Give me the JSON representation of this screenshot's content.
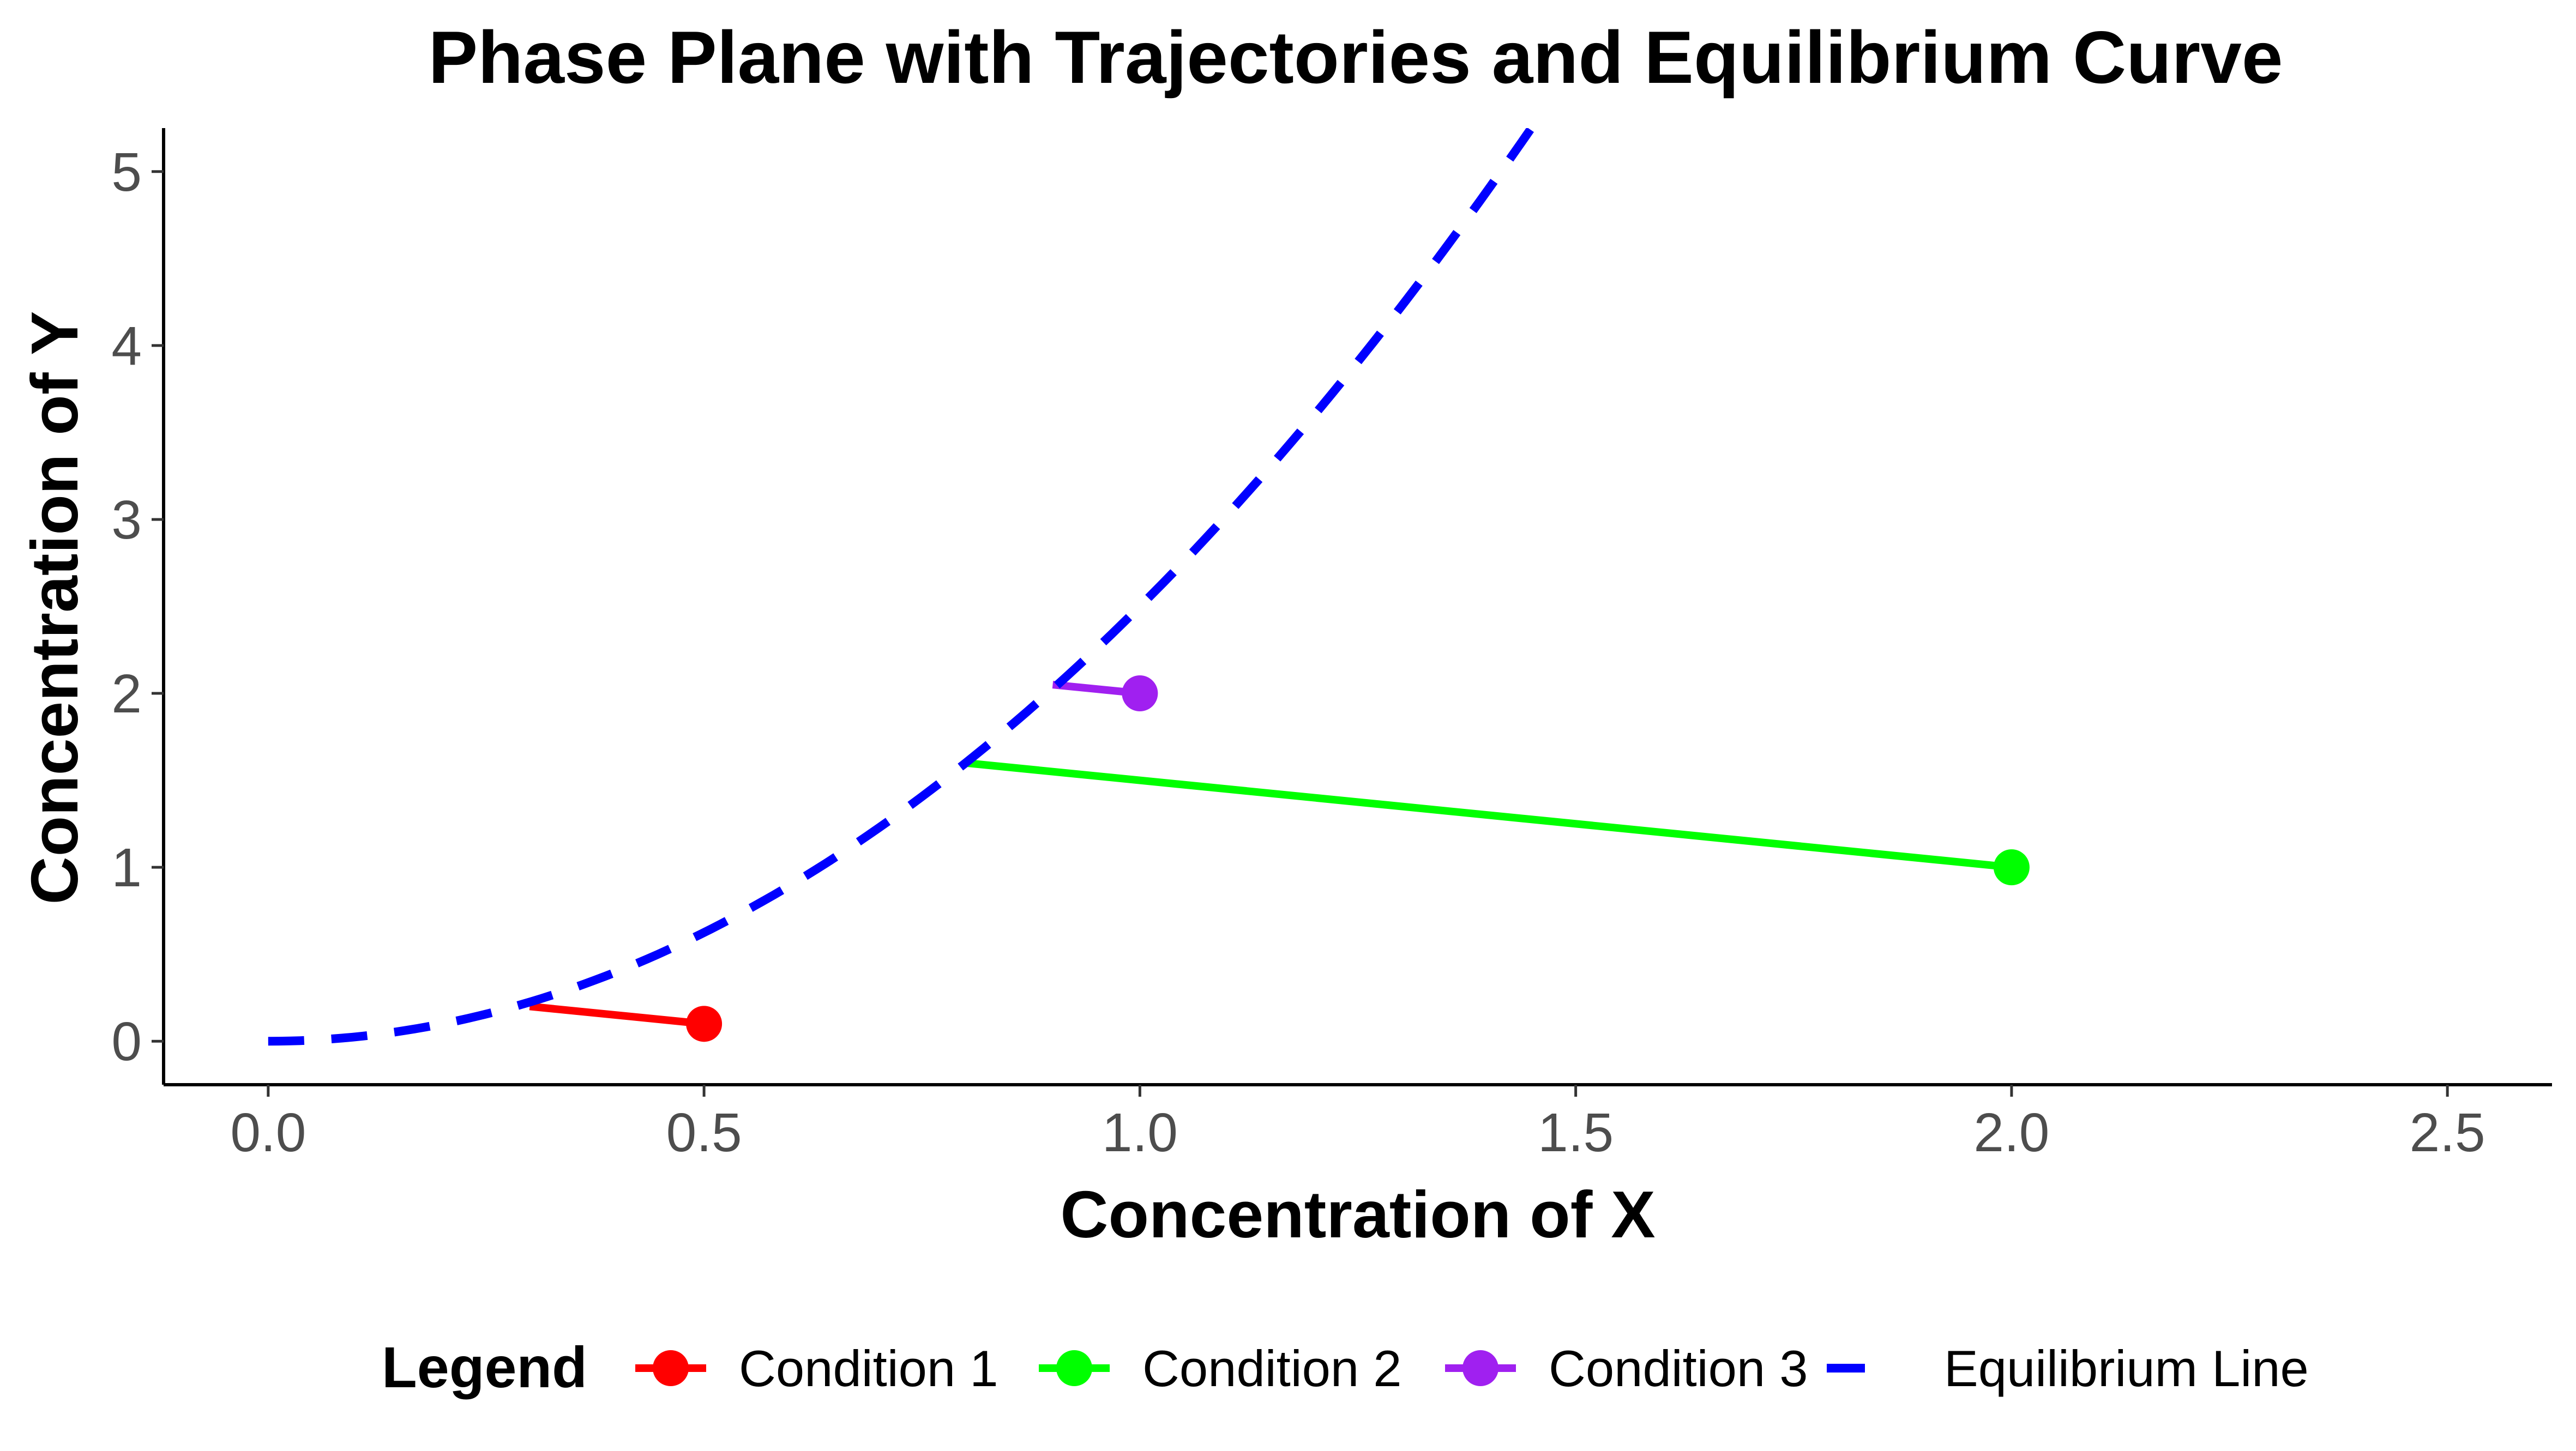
{
  "chart_data": {
    "type": "line",
    "title": "Phase Plane with Trajectories and Equilibrium Curve",
    "xlabel": "Concentration of X",
    "ylabel": "Concentration of Y",
    "xlim": [
      -0.12,
      2.62
    ],
    "ylim": [
      -0.25,
      5.25
    ],
    "x_ticks": [
      0.0,
      0.5,
      1.0,
      1.5,
      2.0,
      2.5
    ],
    "x_tick_labels": [
      "0.0",
      "0.5",
      "1.0",
      "1.5",
      "2.0",
      "2.5"
    ],
    "y_ticks": [
      0,
      1,
      2,
      3,
      4,
      5
    ],
    "y_tick_labels": [
      "0",
      "1",
      "2",
      "3",
      "4",
      "5"
    ],
    "grid": false,
    "legend": {
      "title": "Legend",
      "placement": "bottom",
      "entries": [
        "Condition 1",
        "Condition 2",
        "Condition 3",
        "Equilibrium Line"
      ]
    },
    "series": [
      {
        "name": "Condition 1",
        "color": "#ff0000",
        "style": "solid",
        "points": [
          [
            0.3,
            0.2
          ],
          [
            0.5,
            0.1
          ]
        ],
        "start_marker": [
          0.5,
          0.1
        ]
      },
      {
        "name": "Condition 2",
        "color": "#00ff00",
        "style": "solid",
        "points": [
          [
            0.8,
            1.6
          ],
          [
            2.0,
            1.0
          ]
        ],
        "start_marker": [
          2.0,
          1.0
        ]
      },
      {
        "name": "Condition 3",
        "color": "#a020f0",
        "style": "solid",
        "points": [
          [
            0.9,
            2.05
          ],
          [
            1.0,
            2.0
          ]
        ],
        "start_marker": [
          1.0,
          2.0
        ]
      },
      {
        "name": "Equilibrium Line",
        "color": "#0000ff",
        "style": "dashed",
        "function": "y = 2.5 * x^2",
        "x_range": [
          0.0,
          1.45
        ]
      }
    ]
  }
}
